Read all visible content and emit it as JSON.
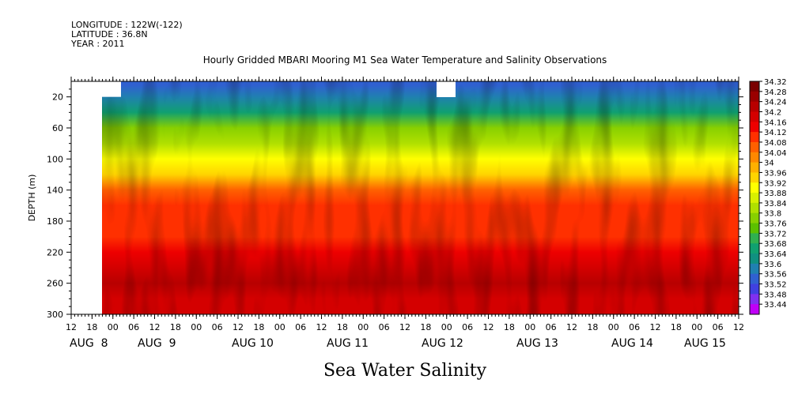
{
  "header": {
    "lines": [
      "LONGITUDE : 122W(-122)",
      "LATITUDE : 36.8N",
      "YEAR : 2011"
    ]
  },
  "chart_data": {
    "type": "heatmap",
    "title": "Hourly Gridded MBARI Mooring M1 Sea Water Temperature and Salinity Observations",
    "xlabel": "Sea Water Salinity",
    "ylabel": "DEPTH (m)",
    "ylim": [
      300,
      0
    ],
    "y_ticks": [
      20,
      60,
      100,
      140,
      180,
      220,
      260,
      300
    ],
    "x_hour_ticks": [
      "12",
      "18",
      "00",
      "06",
      "12",
      "18",
      "00",
      "06",
      "12",
      "18",
      "00",
      "06",
      "12",
      "18",
      "00",
      "06",
      "12",
      "18",
      "00",
      "06",
      "12",
      "18",
      "00",
      "06",
      "12",
      "18",
      "00",
      "06",
      "12",
      "18",
      "00",
      "06",
      "12"
    ],
    "x_day_labels": [
      "AUG  8",
      "AUG  9",
      "AUG 10",
      "AUG 11",
      "AUG 12",
      "AUG 13",
      "AUG 14",
      "AUG 15"
    ],
    "colorbar": {
      "levels": [
        "34.32",
        "34.28",
        "34.24",
        "34.2",
        "34.16",
        "34.12",
        "34.08",
        "34.04",
        "34",
        "33.96",
        "33.92",
        "33.88",
        "33.84",
        "33.8",
        "33.76",
        "33.72",
        "33.68",
        "33.64",
        "33.6",
        "33.56",
        "33.52",
        "33.48",
        "33.44"
      ],
      "colors": [
        "#7a0000",
        "#9a0000",
        "#b80000",
        "#d40000",
        "#ee0000",
        "#ff3000",
        "#ff6000",
        "#ff8800",
        "#ffb000",
        "#ffd400",
        "#ffff00",
        "#d8f000",
        "#b0e000",
        "#88d000",
        "#5cc000",
        "#30b050",
        "#10a070",
        "#109080",
        "#2080b0",
        "#3060d0",
        "#4040e0",
        "#8030f0",
        "#c000f8"
      ]
    },
    "depth_profile": {
      "depths": [
        5,
        20,
        40,
        60,
        80,
        100,
        120,
        140,
        160,
        180,
        200,
        220,
        240,
        260,
        280,
        300
      ],
      "salinity": [
        33.56,
        33.62,
        33.7,
        33.8,
        33.86,
        33.92,
        33.98,
        34.08,
        34.12,
        34.12,
        34.14,
        34.18,
        34.22,
        34.24,
        34.22,
        34.2
      ]
    },
    "missing_data": [
      "before AUG 8 00 (all depths)",
      "AUG 8 00–06 above 20 m",
      "AUG 12 10–12 near surface"
    ]
  }
}
